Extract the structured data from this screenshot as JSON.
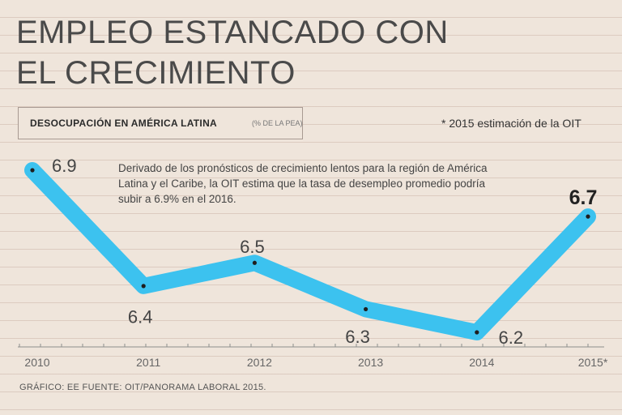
{
  "title_line1": "EMPLEO ESTANCADO CON",
  "title_line2": "EL CRECIMIENTO",
  "subtitle": "DESOCUPACIÓN EN AMÉRICA LATINA",
  "subtitle_unit": "(% DE LA PEA)",
  "note_estimate": "* 2015 estimación de la OIT",
  "annotation": "Derivado de los pronósticos de crecimiento lentos para la región de América Latina y el Caribe, la OIT estima que la tasa de desempleo promedio podría subir a 6.9% en el 2016.",
  "source": "GRÁFICO: EE  FUENTE: OIT/PANORAMA LABORAL 2015.",
  "colors": {
    "line": "#3cc2ef",
    "background": "#efe5db",
    "title": "#4a4a4a"
  },
  "chart_data": {
    "type": "line",
    "title": "DESOCUPACIÓN EN AMÉRICA LATINA",
    "ylabel": "% DE LA PEA",
    "categories": [
      "2010",
      "2011",
      "2012",
      "2013",
      "2014",
      "2015*"
    ],
    "series": [
      {
        "name": "Desocupación",
        "values": [
          6.9,
          6.4,
          6.5,
          6.3,
          6.2,
          6.7
        ],
        "labels": [
          "6.9",
          "6.4",
          "6.5",
          "6.3",
          "6.2",
          "6.7"
        ]
      }
    ],
    "ylim": [
      6.0,
      7.0
    ],
    "highlight_last": true
  }
}
